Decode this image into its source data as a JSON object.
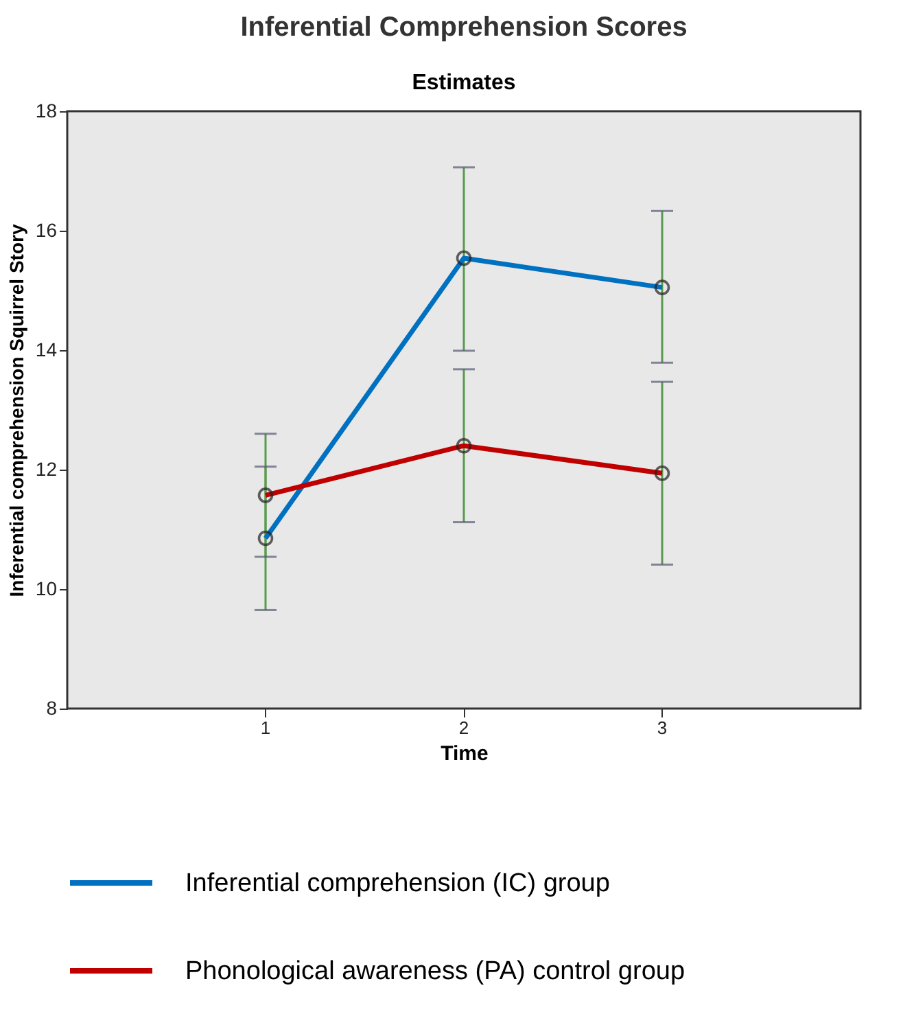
{
  "chart_data": {
    "type": "line",
    "title": "Inferential Comprehension Scores",
    "subtitle": "Estimates",
    "xlabel": "Time",
    "ylabel": "Inferential comprehension Squirrel Story",
    "categories": [
      "1",
      "2",
      "3"
    ],
    "series": [
      {
        "name": "Inferential comprehension (IC) group",
        "color": "#0070c0",
        "values": [
          10.85,
          15.54,
          15.05
        ],
        "errors": [
          [
            9.65,
            12.05
          ],
          [
            13.99,
            17.06
          ],
          [
            13.79,
            16.33
          ]
        ]
      },
      {
        "name": "Phonological awareness (PA) control group",
        "color": "#c00000",
        "values": [
          11.57,
          12.4,
          11.94
        ],
        "errors": [
          [
            10.54,
            12.6
          ],
          [
            11.12,
            13.68
          ],
          [
            10.41,
            13.47
          ]
        ]
      }
    ],
    "ylim": [
      8,
      18
    ],
    "yticks": [
      8,
      10,
      12,
      14,
      16,
      18
    ],
    "grid": false,
    "legend": "bottom",
    "marker": "circle",
    "line_style": "solid"
  }
}
